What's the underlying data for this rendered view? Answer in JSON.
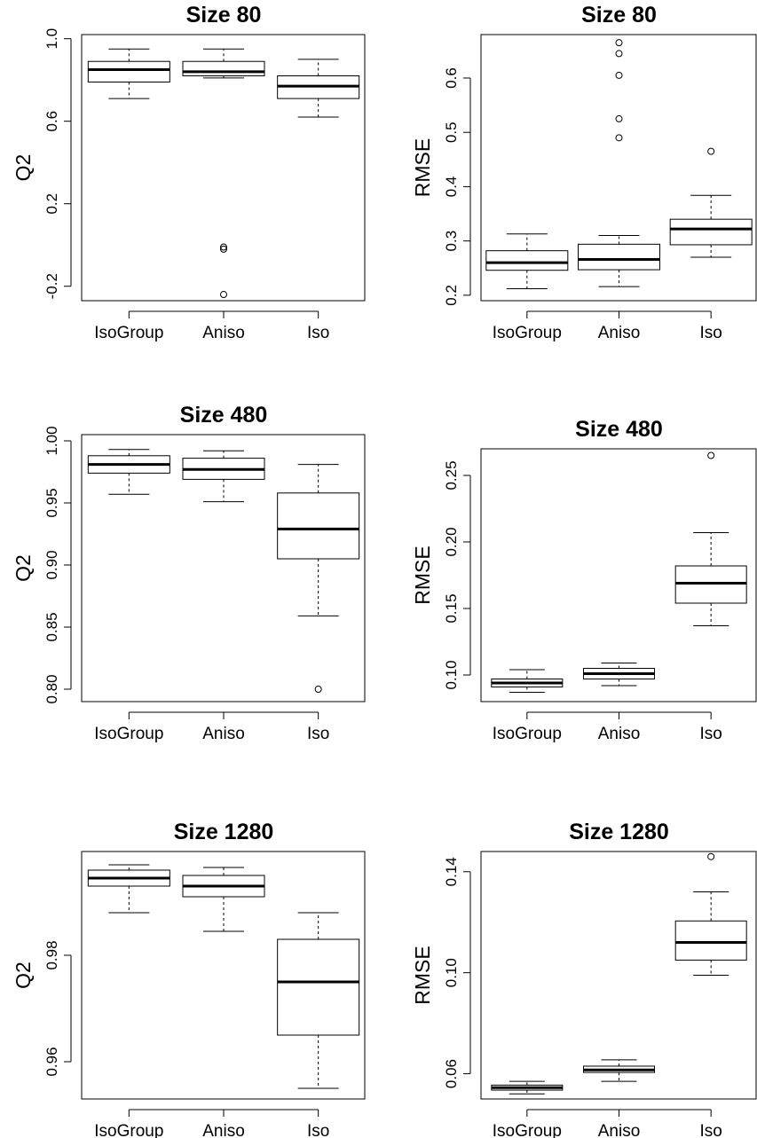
{
  "chart_data": [
    {
      "type": "box",
      "title": "Size 80",
      "ylabel": "Q2",
      "categories": [
        "IsoGroup",
        "Aniso",
        "Iso"
      ],
      "ylim": [
        -0.27,
        1.02
      ],
      "yticks": [
        -0.2,
        0.2,
        0.6,
        1.0
      ],
      "ytick_labels": [
        "-0.2",
        "0.2",
        "0.6",
        "1.0"
      ],
      "boxes": [
        {
          "whisker_low": 0.71,
          "q1": 0.79,
          "median": 0.85,
          "q3": 0.89,
          "whisker_high": 0.95,
          "outliers": []
        },
        {
          "whisker_low": 0.81,
          "q1": 0.82,
          "median": 0.84,
          "q3": 0.89,
          "whisker_high": 0.95,
          "outliers": [
            -0.01,
            -0.02,
            -0.24
          ]
        },
        {
          "whisker_low": 0.62,
          "q1": 0.71,
          "median": 0.77,
          "q3": 0.82,
          "whisker_high": 0.9,
          "outliers": []
        }
      ]
    },
    {
      "type": "box",
      "title": "Size 80",
      "ylabel": "RMSE",
      "categories": [
        "IsoGroup",
        "Aniso",
        "Iso"
      ],
      "ylim": [
        0.19,
        0.68
      ],
      "yticks": [
        0.2,
        0.3,
        0.4,
        0.5,
        0.6
      ],
      "ytick_labels": [
        "0.2",
        "0.3",
        "0.4",
        "0.5",
        "0.6"
      ],
      "boxes": [
        {
          "whisker_low": 0.212,
          "q1": 0.246,
          "median": 0.26,
          "q3": 0.282,
          "whisker_high": 0.313,
          "outliers": []
        },
        {
          "whisker_low": 0.216,
          "q1": 0.247,
          "median": 0.266,
          "q3": 0.294,
          "whisker_high": 0.31,
          "outliers": [
            0.49,
            0.525,
            0.605,
            0.645,
            0.665
          ]
        },
        {
          "whisker_low": 0.27,
          "q1": 0.293,
          "median": 0.322,
          "q3": 0.34,
          "whisker_high": 0.384,
          "outliers": [
            0.465
          ]
        }
      ]
    },
    {
      "type": "box",
      "title": "Size 480",
      "ylabel": "Q2",
      "categories": [
        "IsoGroup",
        "Aniso",
        "Iso"
      ],
      "ylim": [
        0.79,
        1.005
      ],
      "yticks": [
        0.8,
        0.85,
        0.9,
        0.95,
        1.0
      ],
      "ytick_labels": [
        "0.80",
        "0.85",
        "0.90",
        "0.95",
        "1.00"
      ],
      "boxes": [
        {
          "whisker_low": 0.957,
          "q1": 0.974,
          "median": 0.981,
          "q3": 0.988,
          "whisker_high": 0.993,
          "outliers": []
        },
        {
          "whisker_low": 0.951,
          "q1": 0.969,
          "median": 0.977,
          "q3": 0.986,
          "whisker_high": 0.992,
          "outliers": []
        },
        {
          "whisker_low": 0.859,
          "q1": 0.905,
          "median": 0.929,
          "q3": 0.958,
          "whisker_high": 0.981,
          "outliers": [
            0.8
          ]
        }
      ]
    },
    {
      "type": "box",
      "title": "Size 480",
      "ylabel": "RMSE",
      "categories": [
        "IsoGroup",
        "Aniso",
        "Iso"
      ],
      "ylim": [
        0.08,
        0.27
      ],
      "yticks": [
        0.1,
        0.15,
        0.2,
        0.25
      ],
      "ytick_labels": [
        "0.10",
        "0.15",
        "0.20",
        "0.25"
      ],
      "boxes": [
        {
          "whisker_low": 0.087,
          "q1": 0.091,
          "median": 0.094,
          "q3": 0.097,
          "whisker_high": 0.104,
          "outliers": []
        },
        {
          "whisker_low": 0.092,
          "q1": 0.097,
          "median": 0.101,
          "q3": 0.105,
          "whisker_high": 0.109,
          "outliers": []
        },
        {
          "whisker_low": 0.137,
          "q1": 0.154,
          "median": 0.169,
          "q3": 0.182,
          "whisker_high": 0.207,
          "outliers": [
            0.265
          ]
        }
      ]
    },
    {
      "type": "box",
      "title": "Size 1280",
      "ylabel": "Q2",
      "categories": [
        "IsoGroup",
        "Aniso",
        "Iso"
      ],
      "ylim": [
        0.953,
        0.9995
      ],
      "yticks": [
        0.96,
        0.98
      ],
      "ytick_labels": [
        "0.96",
        "0.98"
      ],
      "boxes": [
        {
          "whisker_low": 0.988,
          "q1": 0.993,
          "median": 0.9945,
          "q3": 0.996,
          "whisker_high": 0.997,
          "outliers": []
        },
        {
          "whisker_low": 0.9845,
          "q1": 0.991,
          "median": 0.993,
          "q3": 0.995,
          "whisker_high": 0.9965,
          "outliers": []
        },
        {
          "whisker_low": 0.955,
          "q1": 0.965,
          "median": 0.975,
          "q3": 0.983,
          "whisker_high": 0.988,
          "outliers": []
        }
      ]
    },
    {
      "type": "box",
      "title": "Size 1280",
      "ylabel": "RMSE",
      "categories": [
        "IsoGroup",
        "Aniso",
        "Iso"
      ],
      "ylim": [
        0.05,
        0.148
      ],
      "yticks": [
        0.06,
        0.1,
        0.14
      ],
      "ytick_labels": [
        "0.06",
        "0.10",
        "0.14"
      ],
      "boxes": [
        {
          "whisker_low": 0.052,
          "q1": 0.0535,
          "median": 0.0545,
          "q3": 0.0555,
          "whisker_high": 0.057,
          "outliers": []
        },
        {
          "whisker_low": 0.057,
          "q1": 0.0605,
          "median": 0.0615,
          "q3": 0.063,
          "whisker_high": 0.0655,
          "outliers": []
        },
        {
          "whisker_low": 0.099,
          "q1": 0.105,
          "median": 0.112,
          "q3": 0.1205,
          "whisker_high": 0.132,
          "outliers": [
            0.146
          ]
        }
      ]
    }
  ]
}
